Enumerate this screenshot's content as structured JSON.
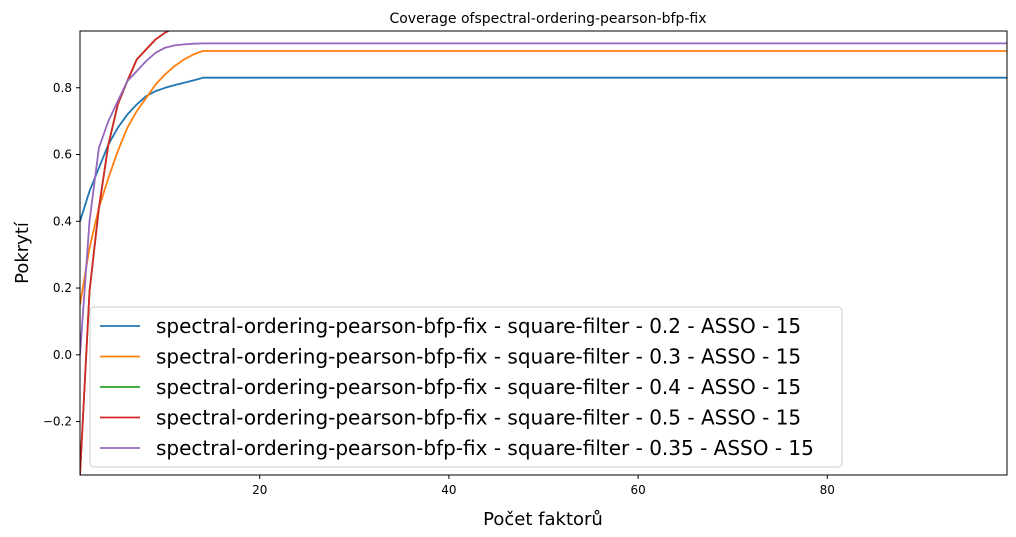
{
  "chart_data": {
    "type": "line",
    "title": "Coverage ofspectral-ordering-pearson-bfp-fix",
    "xlabel": "Počet faktorů",
    "ylabel": "Pokrytí",
    "xlim": [
      1,
      99
    ],
    "ylim": [
      -0.36,
      0.97
    ],
    "xticks": [
      20,
      40,
      60,
      80
    ],
    "yticks": [
      -0.2,
      0.0,
      0.2,
      0.4,
      0.6,
      0.8
    ],
    "ytick_labels": [
      "−0.2",
      "0.0",
      "0.2",
      "0.4",
      "0.6",
      "0.8"
    ],
    "legend_position": "lower-left",
    "grid": false,
    "series": [
      {
        "name": "spectral-ordering-pearson-bfp-fix - square-filter - 0.2 - ASSO - 15",
        "color": "#1f77b4",
        "x": [
          1,
          2,
          3,
          4,
          5,
          6,
          7,
          8,
          9,
          10,
          11,
          12,
          13,
          14,
          99
        ],
        "y": [
          0.4,
          0.49,
          0.56,
          0.63,
          0.68,
          0.72,
          0.75,
          0.775,
          0.79,
          0.8,
          0.808,
          0.815,
          0.822,
          0.83,
          0.83
        ]
      },
      {
        "name": "spectral-ordering-pearson-bfp-fix - square-filter - 0.3 - ASSO - 15",
        "color": "#ff7f0e",
        "x": [
          1,
          2,
          3,
          4,
          5,
          6,
          7,
          8,
          9,
          10,
          11,
          12,
          13,
          14,
          99
        ],
        "y": [
          0.15,
          0.32,
          0.44,
          0.53,
          0.61,
          0.68,
          0.73,
          0.77,
          0.81,
          0.84,
          0.865,
          0.885,
          0.9,
          0.91,
          0.91
        ]
      },
      {
        "name": "spectral-ordering-pearson-bfp-fix - square-filter - 0.4 - ASSO - 15",
        "color": "#2ca02c",
        "x": [
          1,
          2,
          3,
          4,
          5,
          6,
          7,
          8,
          9,
          10,
          11,
          12,
          13,
          14,
          99
        ],
        "y": [
          -0.36,
          0.19,
          0.44,
          0.63,
          0.75,
          0.82,
          0.885,
          0.915,
          0.945,
          0.965,
          0.98,
          0.985,
          0.99,
          0.99,
          0.99
        ]
      },
      {
        "name": "spectral-ordering-pearson-bfp-fix - square-filter - 0.5 - ASSO - 15",
        "color": "#d62728",
        "x": [
          1,
          2,
          3,
          4,
          5,
          6,
          7,
          8,
          9,
          10,
          11,
          12,
          13,
          14,
          99
        ],
        "y": [
          -0.36,
          0.19,
          0.44,
          0.63,
          0.75,
          0.82,
          0.885,
          0.915,
          0.945,
          0.965,
          0.98,
          0.985,
          0.99,
          0.99,
          0.99
        ]
      },
      {
        "name": "spectral-ordering-pearson-bfp-fix - square-filter - 0.35 - ASSO - 15",
        "color": "#9467bd",
        "x": [
          1,
          2,
          3,
          4,
          5,
          6,
          7,
          8,
          9,
          10,
          11,
          12,
          13,
          14,
          99
        ],
        "y": [
          0.0,
          0.4,
          0.62,
          0.7,
          0.76,
          0.82,
          0.85,
          0.88,
          0.905,
          0.92,
          0.927,
          0.93,
          0.932,
          0.933,
          0.933
        ]
      }
    ]
  }
}
